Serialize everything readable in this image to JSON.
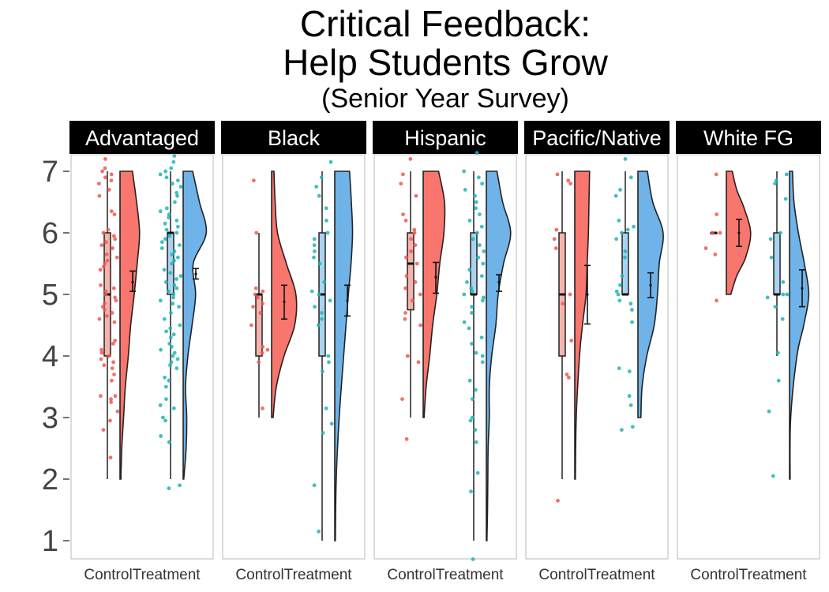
{
  "chart_data": {
    "type": "raincloud",
    "title_lines": [
      "Critical Feedback:",
      "Help Students Grow"
    ],
    "subtitle": "(Senior Year Survey)",
    "xlabel": "",
    "ylabel": "",
    "ylim": [
      0.7,
      7.3
    ],
    "y_ticks": [
      1,
      2,
      3,
      4,
      5,
      6,
      7
    ],
    "categories": [
      "Control",
      "Treatment"
    ],
    "colors": {
      "control_fill": "#f8766d",
      "treatment_fill": "#6fb3e8",
      "control_point": "#f0584f",
      "treatment_point": "#1fb5b5",
      "control_box": "#f6b3ae",
      "treatment_box": "#a9d3f0",
      "strip_bg": "#000000"
    },
    "panels": [
      {
        "name": "Advantaged",
        "groups": {
          "Control": {
            "box": {
              "min": 2,
              "q1": 4,
              "median": 5,
              "q3": 6,
              "max": 7
            },
            "mean": 5.2,
            "ci": [
              5.05,
              5.38
            ],
            "density": [
              [
                2,
                0.03
              ],
              [
                2.5,
                0.06
              ],
              [
                3,
                0.12
              ],
              [
                3.5,
                0.18
              ],
              [
                4,
                0.28
              ],
              [
                4.5,
                0.36
              ],
              [
                5,
                0.48
              ],
              [
                5.5,
                0.58
              ],
              [
                6,
                0.66
              ],
              [
                6.5,
                0.56
              ],
              [
                7,
                0.42
              ]
            ],
            "points": [
              2.35,
              2.8,
              2.95,
              3.1,
              3.25,
              3.3,
              3.35,
              3.35,
              3.6,
              3.7,
              3.8,
              3.85,
              3.9,
              3.95,
              4.0,
              4.05,
              4.1,
              4.2,
              4.25,
              4.55,
              4.6,
              4.65,
              4.7,
              4.75,
              4.8,
              4.85,
              4.9,
              4.95,
              5.0,
              5.05,
              5.1,
              5.15,
              5.4,
              5.45,
              5.5,
              5.55,
              5.6,
              5.65,
              5.75,
              5.8,
              5.85,
              5.9,
              5.95,
              6.0,
              6.05,
              6.3,
              6.35,
              6.6,
              6.7,
              6.8,
              6.85,
              6.9,
              6.95,
              7.0,
              7.05,
              7.2
            ]
          },
          "Treatment": {
            "box": {
              "min": 2,
              "q1": 5,
              "median": 6,
              "q3": 6,
              "max": 7
            },
            "mean": 5.33,
            "ci": [
              5.25,
              5.42
            ],
            "density": [
              [
                2,
                0.02
              ],
              [
                2.5,
                0.1
              ],
              [
                3,
                0.12
              ],
              [
                3.5,
                0.08
              ],
              [
                4,
                0.16
              ],
              [
                4.5,
                0.3
              ],
              [
                5,
                0.42
              ],
              [
                5.5,
                0.34
              ],
              [
                6,
                0.78
              ],
              [
                6.5,
                0.55
              ],
              [
                7,
                0.32
              ]
            ],
            "points": [
              1.85,
              1.9,
              2.6,
              2.7,
              2.95,
              3.0,
              3.15,
              3.2,
              3.3,
              3.5,
              3.6,
              3.65,
              3.8,
              3.85,
              3.9,
              3.95,
              4.0,
              4.05,
              4.1,
              4.15,
              4.2,
              4.3,
              4.35,
              4.4,
              4.45,
              4.5,
              4.6,
              4.7,
              4.8,
              4.85,
              4.9,
              4.95,
              5.0,
              5.05,
              5.1,
              5.15,
              5.2,
              5.25,
              5.3,
              5.35,
              5.4,
              5.5,
              5.55,
              5.6,
              5.65,
              5.7,
              5.75,
              5.8,
              5.85,
              5.9,
              5.95,
              6.0,
              6.05,
              6.1,
              6.15,
              6.2,
              6.25,
              6.3,
              6.35,
              6.4,
              6.5,
              6.6,
              6.65,
              6.75,
              6.8,
              6.85,
              6.9,
              6.95,
              7.0,
              7.05,
              7.15,
              7.25
            ]
          }
        }
      },
      {
        "name": "Black",
        "groups": {
          "Control": {
            "box": {
              "min": 3,
              "q1": 4,
              "median": 5,
              "q3": 5,
              "max": 6
            },
            "mean": 4.88,
            "ci": [
              4.6,
              5.15
            ],
            "density": [
              [
                3,
                0.05
              ],
              [
                3.5,
                0.16
              ],
              [
                4,
                0.42
              ],
              [
                4.5,
                0.78
              ],
              [
                5,
                0.82
              ],
              [
                5.5,
                0.5
              ],
              [
                6,
                0.2
              ],
              [
                6.5,
                0.12
              ],
              [
                7,
                0.08
              ]
            ],
            "points": [
              3.15,
              3.9,
              4.05,
              4.1,
              4.15,
              4.5,
              4.7,
              4.8,
              4.85,
              4.95,
              5.0,
              5.05,
              5.1,
              6.0,
              6.85
            ]
          },
          "Treatment": {
            "box": {
              "min": 1,
              "q1": 4,
              "median": 5,
              "q3": 6,
              "max": 7
            },
            "mean": 4.9,
            "ci": [
              4.65,
              5.15
            ],
            "density": [
              [
                1,
                0.02
              ],
              [
                2,
                0.05
              ],
              [
                3,
                0.15
              ],
              [
                4,
                0.3
              ],
              [
                5,
                0.46
              ],
              [
                5.5,
                0.55
              ],
              [
                6,
                0.6
              ],
              [
                6.5,
                0.56
              ],
              [
                7,
                0.5
              ]
            ],
            "points": [
              1.15,
              1.9,
              2.75,
              2.9,
              3.15,
              3.75,
              3.9,
              4.0,
              4.5,
              4.6,
              4.7,
              4.8,
              4.9,
              5.0,
              5.05,
              5.2,
              5.5,
              5.6,
              5.7,
              5.8,
              5.9,
              6.0,
              6.2,
              6.4,
              6.6,
              6.75,
              6.9,
              7.15
            ]
          }
        }
      },
      {
        "name": "Hispanic",
        "groups": {
          "Control": {
            "box": {
              "min": 3,
              "q1": 4.75,
              "median": 5.5,
              "q3": 6,
              "max": 7
            },
            "mean": 5.28,
            "ci": [
              5.02,
              5.52
            ],
            "density": [
              [
                3,
                0.03
              ],
              [
                3.5,
                0.1
              ],
              [
                4,
                0.22
              ],
              [
                4.5,
                0.32
              ],
              [
                5,
                0.46
              ],
              [
                5.5,
                0.56
              ],
              [
                6,
                0.7
              ],
              [
                6.5,
                0.72
              ],
              [
                7,
                0.52
              ]
            ],
            "points": [
              2.65,
              3.3,
              3.9,
              4.0,
              4.5,
              4.6,
              4.7,
              4.9,
              5.0,
              5.1,
              5.2,
              5.3,
              5.5,
              5.6,
              5.7,
              5.8,
              5.9,
              6.0,
              6.05,
              6.2,
              6.3,
              6.6,
              6.8,
              6.95,
              7.2
            ]
          },
          "Treatment": {
            "box": {
              "min": 1,
              "q1": 5,
              "median": 5,
              "q3": 6,
              "max": 7
            },
            "mean": 5.2,
            "ci": [
              5.05,
              5.32
            ],
            "density": [
              [
                1,
                0.02
              ],
              [
                1.5,
                0.04
              ],
              [
                2,
                0.05
              ],
              [
                2.5,
                0.06
              ],
              [
                3,
                0.1
              ],
              [
                3.5,
                0.1
              ],
              [
                4,
                0.18
              ],
              [
                4.5,
                0.32
              ],
              [
                5,
                0.4
              ],
              [
                5.5,
                0.58
              ],
              [
                6,
                0.82
              ],
              [
                6.5,
                0.55
              ],
              [
                7,
                0.36
              ]
            ],
            "points": [
              0.7,
              1.8,
              2.1,
              2.6,
              2.8,
              2.95,
              3.0,
              3.3,
              3.45,
              3.6,
              3.9,
              4.0,
              4.05,
              4.2,
              4.3,
              4.45,
              4.55,
              4.7,
              4.8,
              4.9,
              4.95,
              5.0,
              5.05,
              5.1,
              5.2,
              5.3,
              5.4,
              5.5,
              5.6,
              5.7,
              5.8,
              5.9,
              6.0,
              6.1,
              6.2,
              6.3,
              6.4,
              6.5,
              6.6,
              6.7,
              6.8,
              6.9,
              7.0,
              7.3
            ]
          }
        }
      },
      {
        "name": "Pacific/Native",
        "groups": {
          "Control": {
            "box": {
              "min": 2,
              "q1": 4,
              "median": 5,
              "q3": 6,
              "max": 7
            },
            "mean": 5.0,
            "ci": [
              4.52,
              5.47
            ],
            "density": [
              [
                2,
                0.02
              ],
              [
                3,
                0.05
              ],
              [
                4,
                0.16
              ],
              [
                4.5,
                0.26
              ],
              [
                5,
                0.38
              ],
              [
                5.5,
                0.42
              ],
              [
                6,
                0.46
              ],
              [
                6.5,
                0.48
              ],
              [
                7,
                0.5
              ]
            ],
            "points": [
              1.65,
              3.65,
              3.7,
              4.25,
              4.85,
              5.0,
              5.75,
              5.9,
              6.05,
              6.8,
              6.85,
              6.95
            ]
          },
          "Treatment": {
            "box": {
              "min": 5,
              "q1": 5,
              "median": 5,
              "q3": 6,
              "max": 7
            },
            "mean": 5.15,
            "ci": [
              4.95,
              5.35
            ],
            "density": [
              [
                3,
                0.1
              ],
              [
                3.5,
                0.14
              ],
              [
                4,
                0.3
              ],
              [
                4.5,
                0.55
              ],
              [
                5,
                0.66
              ],
              [
                5.5,
                0.72
              ],
              [
                6,
                0.85
              ],
              [
                6.5,
                0.5
              ],
              [
                7,
                0.32
              ]
            ],
            "points": [
              2.8,
              2.85,
              3.2,
              3.35,
              3.75,
              3.8,
              4.55,
              4.75,
              4.85,
              4.9,
              5.0,
              5.05,
              5.15,
              5.3,
              5.6,
              5.7,
              5.9,
              6.0,
              6.05,
              6.1,
              6.2,
              6.6,
              6.7,
              6.9,
              7.2
            ]
          }
        }
      },
      {
        "name": "White FG",
        "groups": {
          "Control": {
            "box": {
              "min": 6,
              "q1": 6,
              "median": 6,
              "q3": 6,
              "max": 6
            },
            "mean": 6.0,
            "ci": [
              5.78,
              6.22
            ],
            "density": [
              [
                5,
                0.15
              ],
              [
                5.3,
                0.35
              ],
              [
                5.6,
                0.65
              ],
              [
                6,
                0.82
              ],
              [
                6.4,
                0.6
              ],
              [
                6.7,
                0.35
              ],
              [
                7,
                0.2
              ]
            ],
            "points": [
              4.9,
              5.65,
              5.75,
              6.0,
              6.0,
              6.3,
              6.95
            ]
          },
          "Treatment": {
            "box": {
              "min": 4,
              "q1": 5,
              "median": 5,
              "q3": 6,
              "max": 7
            },
            "mean": 5.1,
            "ci": [
              4.8,
              5.4
            ],
            "density": [
              [
                2,
                0.02
              ],
              [
                3,
                0.04
              ],
              [
                4,
                0.25
              ],
              [
                4.5,
                0.48
              ],
              [
                5,
                0.65
              ],
              [
                5.5,
                0.5
              ],
              [
                6,
                0.3
              ],
              [
                6.5,
                0.15
              ],
              [
                7,
                0.1
              ]
            ],
            "points": [
              2.05,
              3.1,
              3.6,
              4.05,
              4.6,
              4.8,
              4.95,
              5.0,
              5.0,
              5.2,
              5.6,
              5.9,
              6.0,
              6.55,
              6.8,
              6.85,
              6.95
            ]
          }
        }
      }
    ]
  }
}
